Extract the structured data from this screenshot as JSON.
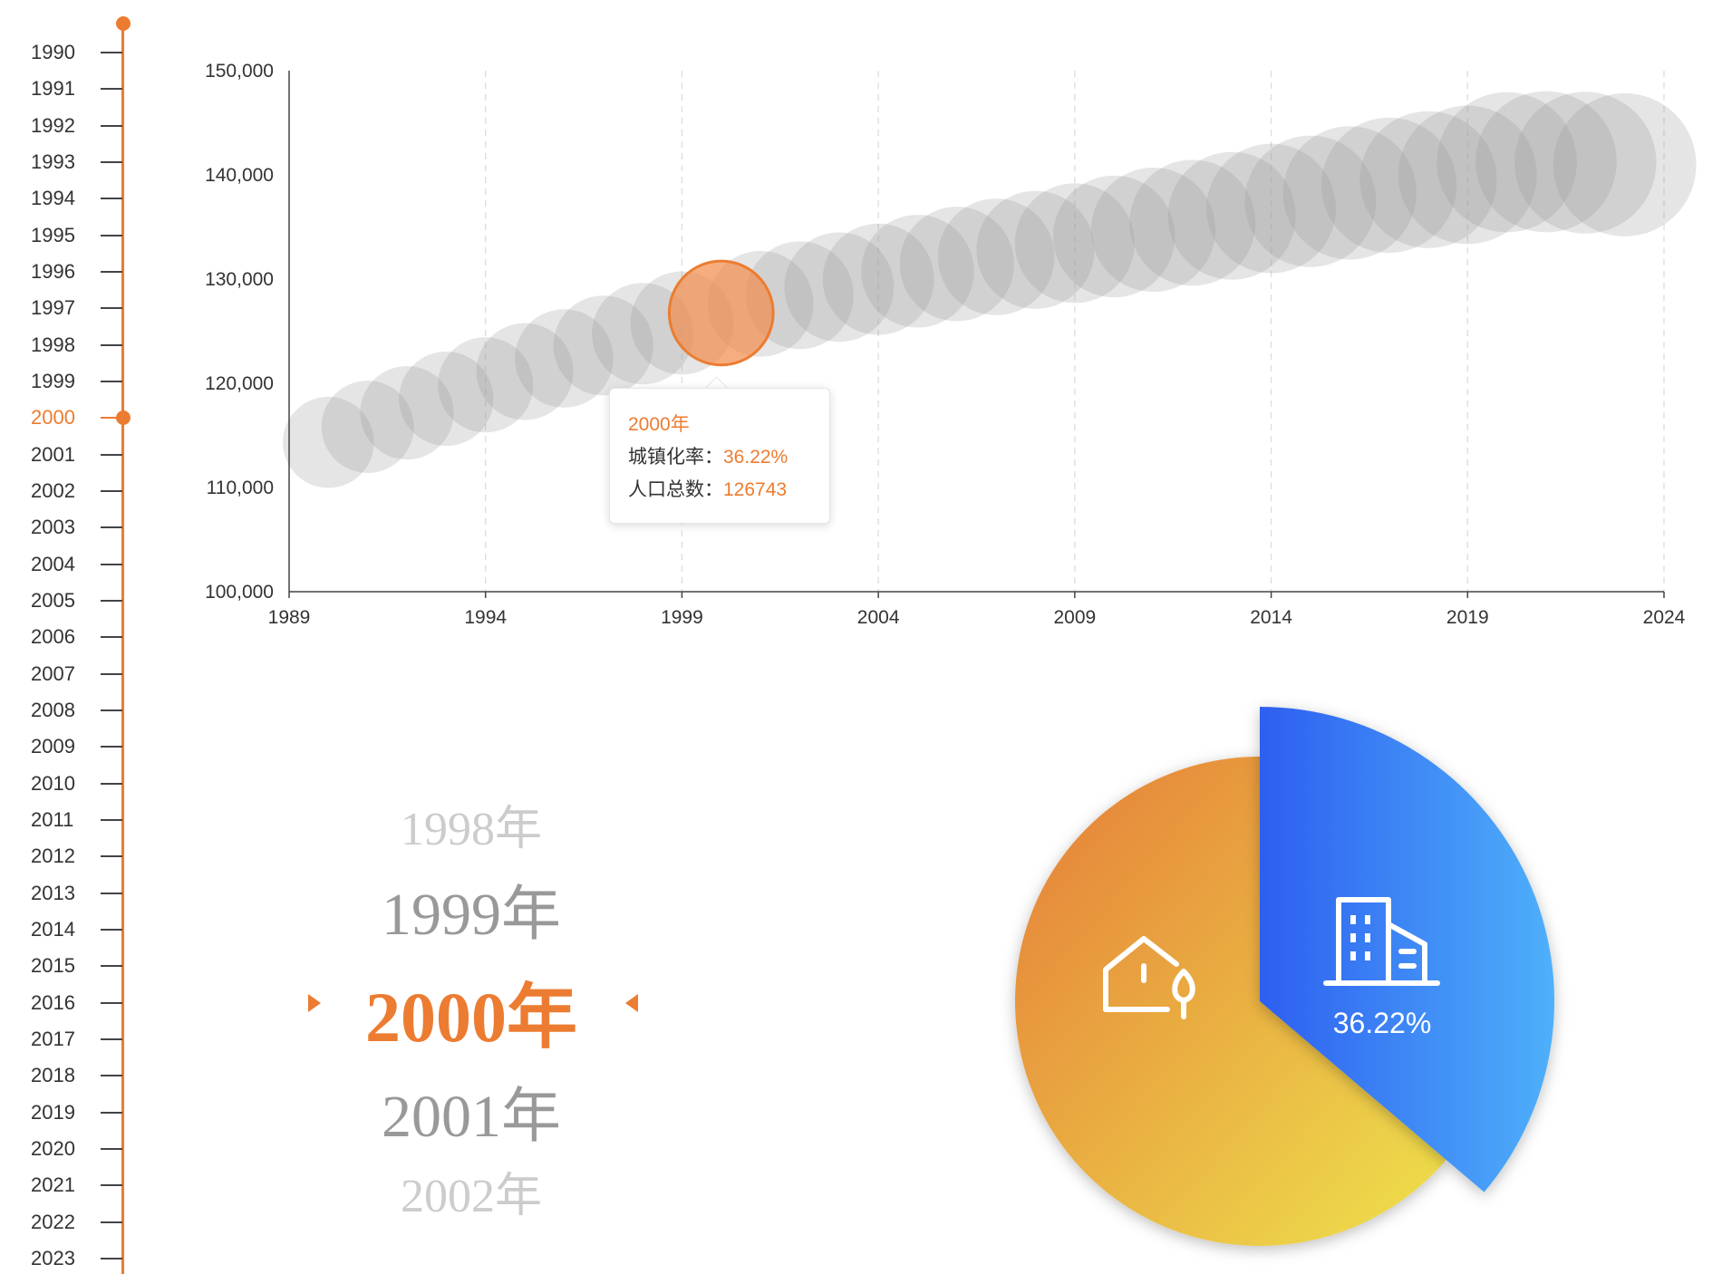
{
  "timeline": {
    "years": [
      "1990",
      "1991",
      "1992",
      "1993",
      "1994",
      "1995",
      "1996",
      "1997",
      "1998",
      "1999",
      "2000",
      "2001",
      "2002",
      "2003",
      "2004",
      "2005",
      "2006",
      "2007",
      "2008",
      "2009",
      "2010",
      "2011",
      "2012",
      "2013",
      "2014",
      "2015",
      "2016",
      "2017",
      "2018",
      "2019",
      "2020",
      "2021",
      "2022",
      "2023"
    ],
    "selected": "2000",
    "accent_color": "#ec7c31"
  },
  "chart_data": [
    {
      "type": "scatter",
      "title": "",
      "xlabel": "",
      "ylabel": "",
      "x_ticks": [
        "1989",
        "1994",
        "1999",
        "2004",
        "2009",
        "2014",
        "2019",
        "2024"
      ],
      "y_ticks": [
        "100,000",
        "110,000",
        "120,000",
        "130,000",
        "140,000",
        "150,000"
      ],
      "xlim": [
        1989,
        2024
      ],
      "ylim": [
        100000,
        150000
      ],
      "grid": "vertical-dashed",
      "series": [
        {
          "x": [
            1990,
            1991,
            1992,
            1993,
            1994,
            1995,
            1996,
            1997,
            1998,
            1999,
            2000,
            2001,
            2002,
            2003,
            2004,
            2005,
            2006,
            2007,
            2008,
            2009,
            2010,
            2011,
            2012,
            2013,
            2014,
            2015,
            2016,
            2017,
            2018,
            2019,
            2020,
            2021,
            2022,
            2023
          ],
          "y": [
            114333,
            115823,
            117171,
            118517,
            119850,
            121121,
            122389,
            123626,
            124761,
            125786,
            126743,
            127627,
            128453,
            129227,
            129988,
            130756,
            131448,
            132129,
            132802,
            133450,
            134091,
            134735,
            135404,
            136072,
            136782,
            137462,
            138271,
            139008,
            139538,
            140005,
            141212,
            141260,
            141175,
            140967
          ],
          "size": [
            26.4,
            27.3,
            28.2,
            28.9,
            29.6,
            30.8,
            31.9,
            33.1,
            34.3,
            35.6,
            36.2,
            37.7,
            39.1,
            40.5,
            41.8,
            43.0,
            44.3,
            45.9,
            47.0,
            48.3,
            49.9,
            51.8,
            53.1,
            54.5,
            55.8,
            57.3,
            58.8,
            60.2,
            61.5,
            62.7,
            63.9,
            64.7,
            65.2,
            66.2
          ]
        }
      ],
      "highlight_year": 2000,
      "bubble_color": "#999999",
      "highlight_color": "#f28c4a"
    },
    {
      "type": "pie",
      "title": "",
      "year": "2000",
      "slices": [
        {
          "name": "城镇",
          "value": 36.22,
          "color_start": "#2d5ff0",
          "color_end": "#4fb0fa"
        },
        {
          "name": "乡村",
          "value": 63.78,
          "color_start": "#e57c38",
          "color_end": "#eee24c"
        }
      ],
      "label": "36.22%"
    }
  ],
  "tooltip": {
    "year": "2000年",
    "urban_label": "城镇化率：",
    "urban_value": "36.22%",
    "pop_label": "人口总数：",
    "pop_value": "126743"
  },
  "year_scroller": {
    "items": [
      "1998年",
      "1999年",
      "2000年",
      "2001年",
      "2002年"
    ]
  },
  "icons": {
    "urban": "building-icon",
    "rural": "house-tree-icon"
  }
}
